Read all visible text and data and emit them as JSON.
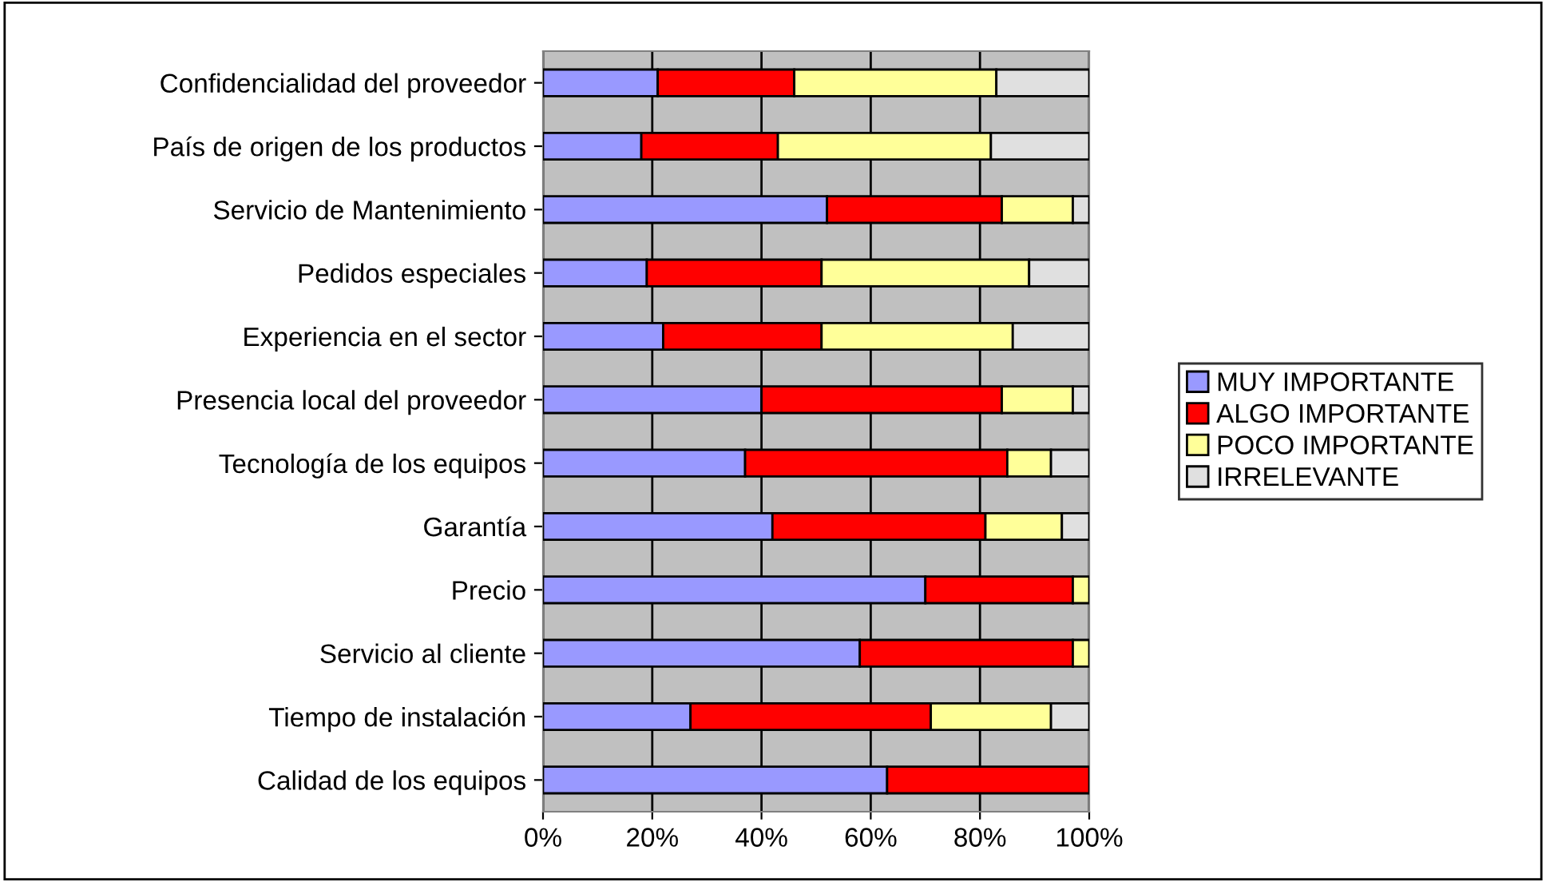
{
  "chart_data": {
    "type": "bar",
    "orientation": "horizontal",
    "stacked": true,
    "categories": [
      "Confidencialidad del proveedor",
      "País de origen de los productos",
      "Servicio de Mantenimiento",
      "Pedidos especiales",
      "Experiencia en el sector",
      "Presencia local del proveedor",
      "Tecnología de los equipos",
      "Garantía",
      "Precio",
      "Servicio al cliente",
      "Tiempo de instalación",
      "Calidad de los equipos"
    ],
    "series": [
      {
        "name": "MUY IMPORTANTE",
        "color": "#9999ff",
        "values": [
          21,
          18,
          52,
          19,
          22,
          40,
          37,
          42,
          70,
          58,
          27,
          63
        ]
      },
      {
        "name": "ALGO IMPORTANTE",
        "color": "#ff0000",
        "values": [
          25,
          25,
          32,
          32,
          29,
          44,
          48,
          39,
          27,
          39,
          44,
          37
        ]
      },
      {
        "name": "POCO IMPORTANTE",
        "color": "#ffff99",
        "values": [
          37,
          39,
          13,
          38,
          35,
          13,
          8,
          14,
          3,
          3,
          22,
          0
        ]
      },
      {
        "name": "IRRELEVANTE",
        "color": "#e0e0e0",
        "values": [
          17,
          18,
          3,
          11,
          14,
          3,
          7,
          5,
          0,
          0,
          7,
          0
        ]
      }
    ],
    "xlim": [
      0,
      100
    ],
    "xticks": [
      {
        "value": 0,
        "label": "0%"
      },
      {
        "value": 20,
        "label": "20%"
      },
      {
        "value": 40,
        "label": "40%"
      },
      {
        "value": 60,
        "label": "60%"
      },
      {
        "value": 80,
        "label": "80%"
      },
      {
        "value": 100,
        "label": "100%"
      }
    ],
    "grid": "x",
    "legend": "right"
  }
}
